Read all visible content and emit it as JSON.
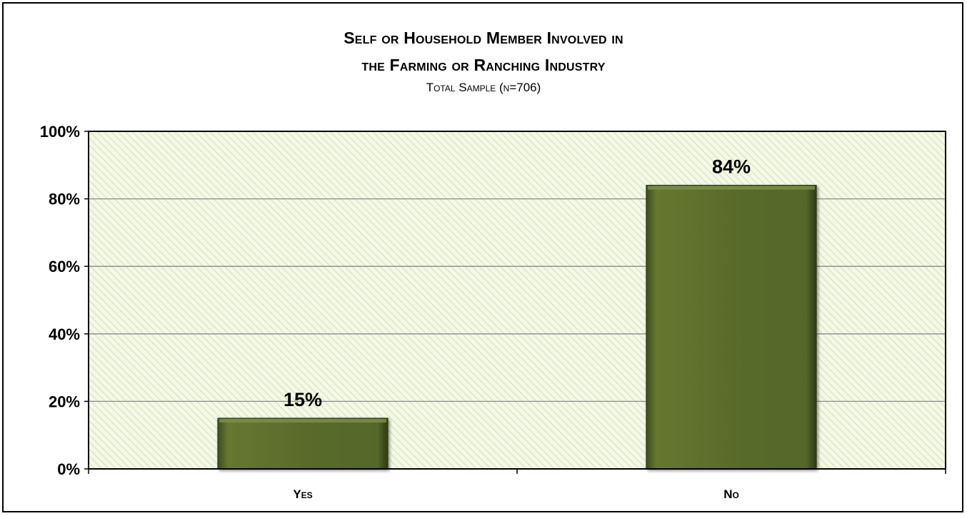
{
  "chart_data": {
    "type": "bar",
    "title_lines": [
      "Self or Household Member Involved in",
      "the Farming or Ranching Industry"
    ],
    "subtitle": "Total Sample (n=706)",
    "categories": [
      "Yes",
      "No"
    ],
    "values": [
      15,
      84
    ],
    "data_labels": [
      "15%",
      "84%"
    ],
    "ylim": [
      0,
      100
    ],
    "yticks": [
      "0%",
      "20%",
      "40%",
      "60%",
      "80%",
      "100%"
    ],
    "ytick_values": [
      0,
      20,
      40,
      60,
      80,
      100
    ],
    "xlabel": "",
    "ylabel": "",
    "grid": true,
    "legend": "none",
    "colors": {
      "bar": "#5a6b2c",
      "bar_light": "#7b8f45",
      "bar_dark": "#3f4c1c",
      "plot_bg": "#f4f8e6",
      "hatch": "#c9d8a6",
      "grid": "#8a8a8a"
    }
  }
}
